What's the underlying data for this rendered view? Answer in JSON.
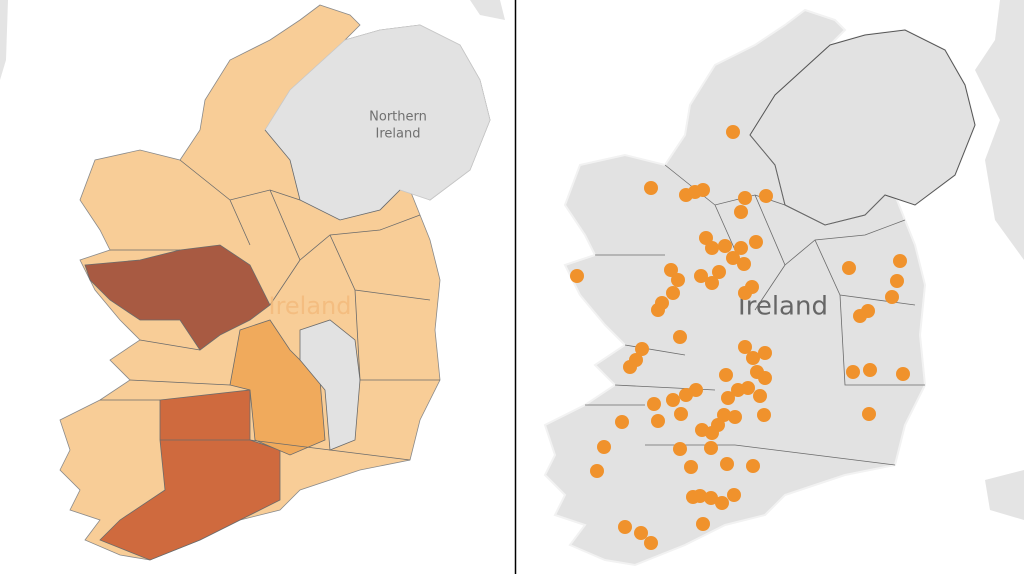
{
  "left_map": {
    "northern_ireland_label": [
      "Northern",
      "Ireland"
    ],
    "ireland_label": "Ireland"
  },
  "right_map": {
    "ireland_label": "Ireland"
  }
}
